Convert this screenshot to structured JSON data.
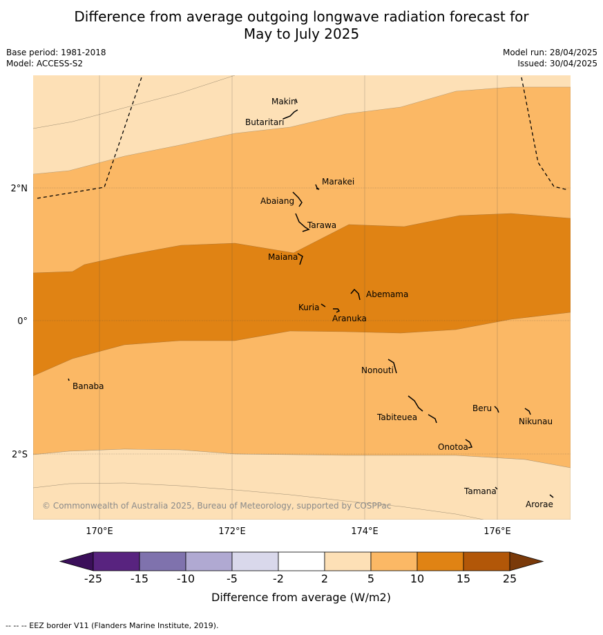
{
  "title_line1": "Difference from average outgoing longwave radiation forecast for",
  "title_line2": "May to July 2025",
  "base_period": "Base period: 1981-2018",
  "model": "Model: ACCESS-S2",
  "model_run": "Model run: 28/04/2025",
  "issued": "Issued: 30/04/2025",
  "copyright": "© Commonwealth of Australia 2025, Bureau of Meteorology, supported by COSPPac",
  "lon_ticks": [
    "170°E",
    "172°E",
    "174°E",
    "176°E"
  ],
  "lat_ticks": [
    "2°N",
    "0°",
    "2°S"
  ],
  "places": {
    "makin": "Makin",
    "butaritari": "Butaritari",
    "marakei": "Marakei",
    "abaiang": "Abaiang",
    "tarawa": "Tarawa",
    "maiana": "Maiana",
    "abemama": "Abemama",
    "kuria": "Kuria",
    "aranuka": "Aranuka",
    "nonouti": "Nonouti",
    "banaba": "Banaba",
    "beru": "Beru",
    "tabiteuea": "Tabiteuea",
    "nikunau": "Nikunau",
    "onotoa": "Onotoa",
    "tamana": "Tamana",
    "arorae": "Arorae"
  },
  "colorbar": {
    "label": "Difference from average (W/m2)",
    "ticks": [
      "-25",
      "-15",
      "-10",
      "-5",
      "-2",
      "2",
      "5",
      "10",
      "15",
      "25"
    ],
    "colors": [
      "#3b0f5a",
      "#58237f",
      "#7f72ad",
      "#b0a9d2",
      "#d9d8eb",
      "#ffffff",
      "#fde0b6",
      "#fbb865",
      "#e08314",
      "#b25708",
      "#7a3a0a"
    ]
  },
  "footer": "--  --  -- EEZ border V11 (Flanders Marine Institute, 2019)."
}
